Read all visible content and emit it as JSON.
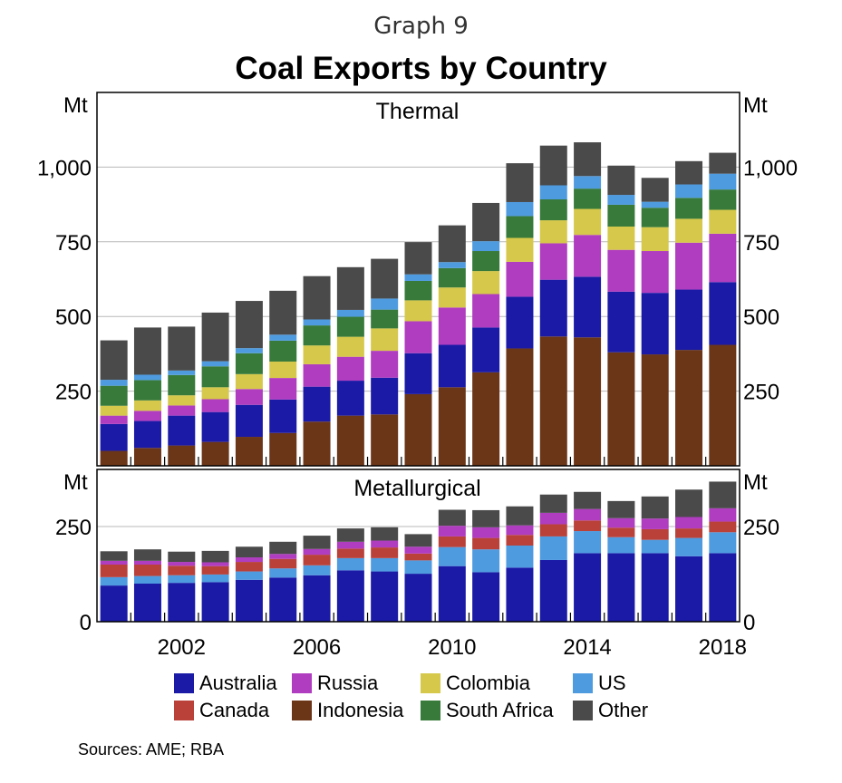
{
  "graph_label": "Graph 9",
  "title": "Coal Exports by Country",
  "sources": "Sources: AME; RBA",
  "colors": {
    "Australia": "#1a1aa6",
    "Russia": "#b03cc0",
    "Colombia": "#d6c84a",
    "US": "#4f9be0",
    "Canada": "#b9413a",
    "Indonesia": "#6b3518",
    "South Africa": "#377a3a",
    "Other": "#4a4a4a"
  },
  "legend": [
    "Australia",
    "Russia",
    "Colombia",
    "US",
    "Canada",
    "Indonesia",
    "South Africa",
    "Other"
  ],
  "chart_data": [
    {
      "type": "bar",
      "stacked": true,
      "title": "Thermal",
      "unit_label": "Mt",
      "ylim": [
        0,
        1250
      ],
      "yticks": [
        250,
        500,
        750,
        1000
      ],
      "ytick_labels": [
        "250",
        "500",
        "750",
        "1,000"
      ],
      "categories": [
        "2000",
        "2001",
        "2002",
        "2003",
        "2004",
        "2005",
        "2006",
        "2007",
        "2008",
        "2009",
        "2010",
        "2011",
        "2012",
        "2013",
        "2014",
        "2015",
        "2016",
        "2017",
        "2018"
      ],
      "series": [
        {
          "name": "Indonesia",
          "values": [
            50,
            60,
            68,
            80,
            97,
            110,
            148,
            168,
            172,
            240,
            263,
            313,
            393,
            433,
            430,
            380,
            373,
            388,
            405
          ]
        },
        {
          "name": "Australia",
          "values": [
            90,
            90,
            100,
            100,
            107,
            112,
            117,
            117,
            123,
            137,
            142,
            150,
            173,
            190,
            203,
            203,
            206,
            202,
            210
          ]
        },
        {
          "name": "Canada",
          "values": [
            0,
            0,
            0,
            0,
            0,
            0,
            0,
            0,
            0,
            0,
            0,
            0,
            0,
            0,
            0,
            0,
            0,
            0,
            0
          ]
        },
        {
          "name": "Russia",
          "values": [
            28,
            34,
            34,
            43,
            53,
            72,
            75,
            80,
            90,
            107,
            125,
            112,
            117,
            122,
            140,
            140,
            140,
            157,
            162
          ]
        },
        {
          "name": "Colombia",
          "values": [
            33,
            35,
            34,
            40,
            50,
            55,
            63,
            67,
            75,
            70,
            67,
            77,
            80,
            77,
            87,
            78,
            80,
            80,
            80
          ]
        },
        {
          "name": "South Africa",
          "values": [
            67,
            68,
            68,
            70,
            70,
            70,
            67,
            67,
            63,
            65,
            65,
            67,
            73,
            70,
            68,
            73,
            65,
            70,
            68
          ]
        },
        {
          "name": "US",
          "values": [
            20,
            18,
            15,
            17,
            17,
            20,
            20,
            23,
            37,
            22,
            20,
            33,
            47,
            47,
            42,
            33,
            20,
            45,
            53
          ]
        },
        {
          "name": "Other",
          "values": [
            132,
            158,
            147,
            163,
            158,
            147,
            145,
            143,
            133,
            108,
            123,
            128,
            130,
            133,
            113,
            98,
            80,
            78,
            70
          ]
        }
      ]
    },
    {
      "type": "bar",
      "stacked": true,
      "title": "Metallurgical",
      "unit_label": "Mt",
      "ylim": [
        0,
        400
      ],
      "yticks": [
        0,
        250
      ],
      "ytick_labels": [
        "0",
        "250"
      ],
      "xtick_labels": [
        "2002",
        "2006",
        "2010",
        "2014",
        "2018"
      ],
      "categories": [
        "2000",
        "2001",
        "2002",
        "2003",
        "2004",
        "2005",
        "2006",
        "2007",
        "2008",
        "2009",
        "2010",
        "2011",
        "2012",
        "2013",
        "2014",
        "2015",
        "2016",
        "2017",
        "2018"
      ],
      "series": [
        {
          "name": "Australia",
          "values": [
            95,
            100,
            102,
            104,
            110,
            116,
            122,
            135,
            132,
            126,
            146,
            130,
            142,
            162,
            180,
            180,
            180,
            172,
            180
          ]
        },
        {
          "name": "US",
          "values": [
            22,
            20,
            20,
            20,
            22,
            24,
            26,
            32,
            35,
            35,
            50,
            60,
            58,
            62,
            58,
            42,
            35,
            48,
            55
          ]
        },
        {
          "name": "Canada",
          "values": [
            33,
            30,
            25,
            22,
            25,
            25,
            28,
            25,
            28,
            18,
            28,
            30,
            28,
            32,
            28,
            25,
            28,
            25,
            28
          ]
        },
        {
          "name": "Russia",
          "values": [
            10,
            10,
            10,
            10,
            12,
            13,
            15,
            18,
            18,
            18,
            28,
            28,
            25,
            30,
            30,
            25,
            28,
            30,
            35
          ]
        },
        {
          "name": "Indonesia",
          "values": [
            0,
            0,
            0,
            0,
            0,
            0,
            0,
            0,
            0,
            0,
            0,
            0,
            0,
            0,
            0,
            0,
            0,
            0,
            0
          ]
        },
        {
          "name": "Colombia",
          "values": [
            0,
            0,
            0,
            0,
            0,
            0,
            0,
            0,
            0,
            0,
            0,
            0,
            0,
            0,
            0,
            0,
            0,
            0,
            0
          ]
        },
        {
          "name": "South Africa",
          "values": [
            0,
            0,
            0,
            0,
            0,
            0,
            0,
            0,
            0,
            0,
            0,
            0,
            0,
            0,
            0,
            0,
            0,
            0,
            0
          ]
        },
        {
          "name": "Other",
          "values": [
            25,
            30,
            27,
            30,
            28,
            32,
            35,
            35,
            35,
            33,
            42,
            45,
            50,
            48,
            45,
            45,
            58,
            72,
            70
          ]
        }
      ]
    }
  ]
}
